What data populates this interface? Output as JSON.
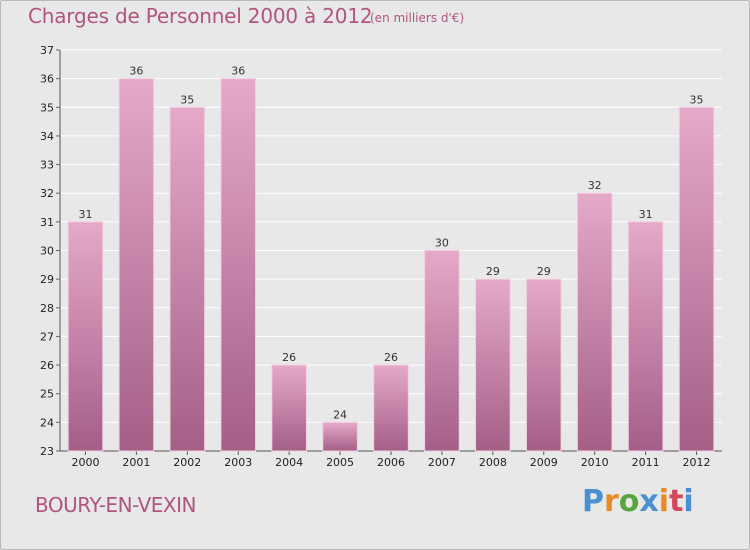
{
  "header": {
    "title": "Charges de Personnel 2000 à 2012",
    "unit_note": "(en milliers d'€)"
  },
  "footer": {
    "city": "BOURY-EN-VEXIN",
    "logo_letters": [
      "P",
      "r",
      "o",
      "x",
      "i",
      "t",
      "i"
    ],
    "logo_colors": [
      "#4a8fd0",
      "#e88a2a",
      "#5aa43e",
      "#4a8fd0",
      "#e88a2a",
      "#d2475a",
      "#4a8fd0"
    ]
  },
  "colors": {
    "background": "#e8e8e8",
    "bar_top": "#e5a9ca",
    "bar_bottom": "#a45f87",
    "text_accent": "#b0557f"
  },
  "chart_data": {
    "type": "bar",
    "title": "Charges de Personnel 2000 à 2012",
    "subtitle": "(en milliers d'€)",
    "categories": [
      "2000",
      "2001",
      "2002",
      "2003",
      "2004",
      "2005",
      "2006",
      "2007",
      "2008",
      "2009",
      "2010",
      "2011",
      "2012"
    ],
    "values": [
      31,
      36,
      35,
      36,
      26,
      24,
      26,
      30,
      29,
      29,
      32,
      31,
      35
    ],
    "value_labels": [
      "31",
      "36",
      "35",
      "36",
      "26",
      "24",
      "26",
      "30",
      "29",
      "29",
      "32",
      "31",
      "35"
    ],
    "ylim": [
      23,
      37
    ],
    "yticks": [
      "23",
      "24",
      "25",
      "26",
      "27",
      "28",
      "29",
      "30",
      "31",
      "32",
      "33",
      "34",
      "35",
      "36",
      "37"
    ],
    "grid": "horizontal",
    "xlabel": "",
    "ylabel": ""
  }
}
